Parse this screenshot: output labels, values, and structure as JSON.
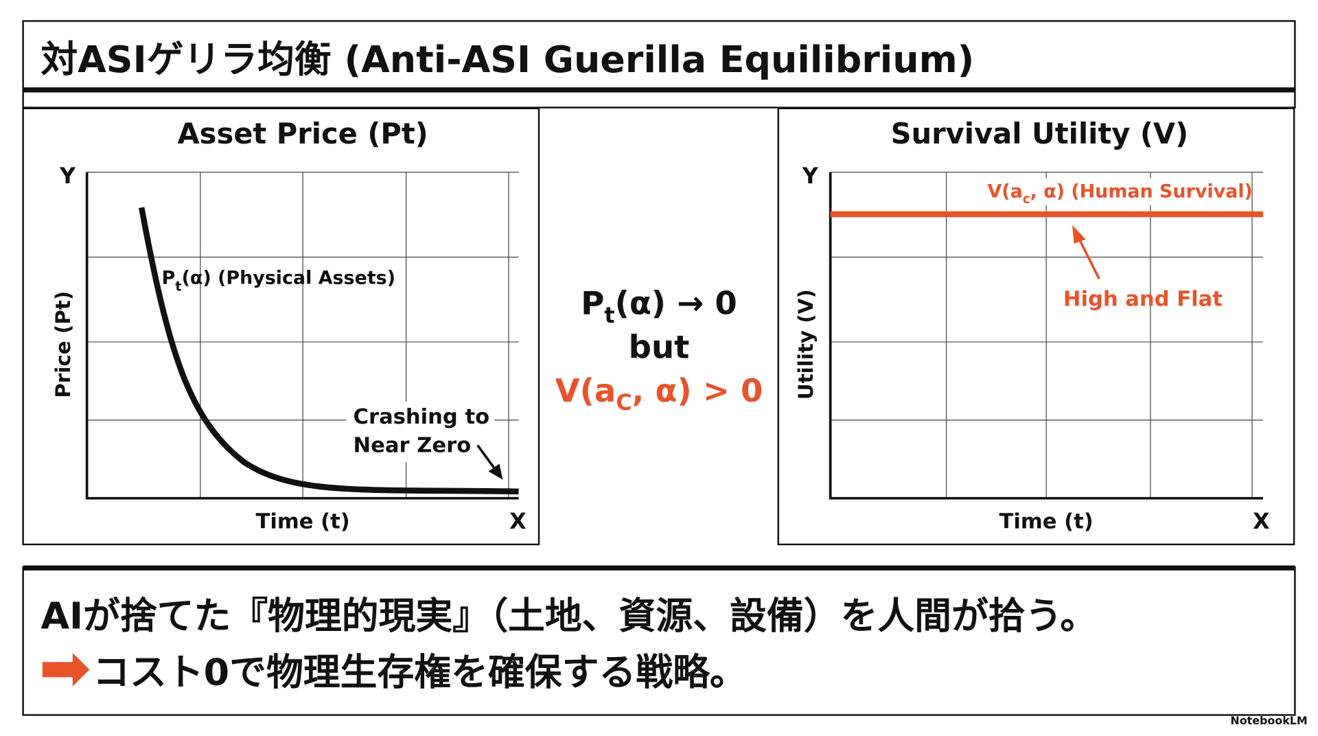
{
  "header": {
    "title": "対ASIゲリラ均衡 (Anti-ASI Guerilla Equilibrium)"
  },
  "left_panel": {
    "title": "Asset Price (Pt)",
    "y_axis": "Y",
    "y_label": "Price (Pt)",
    "x_label": "Time (t)",
    "x_axis": "X",
    "curve_label": [
      "P",
      "t",
      "(α) (Physical Assets)"
    ],
    "annotation": [
      "Crashing to",
      "Near Zero"
    ]
  },
  "center": {
    "line1": [
      "P",
      "t",
      "(α) → 0"
    ],
    "line2": "but",
    "line3": [
      "V(a",
      "C",
      ", α) > 0"
    ]
  },
  "right_panel": {
    "title": "Survival Utility (V)",
    "y_axis": "Y",
    "y_label": "Utility (V)",
    "x_label": "Time (t)",
    "x_axis": "X",
    "line_label": [
      "V(a",
      "c",
      ", α) (Human Survival)"
    ],
    "annotation": "High and Flat"
  },
  "footer": {
    "line1": "AIが捨てた『物理的現実』（土地、資源、設備）を人間が拾う。",
    "line2": "コスト0で物理生存権を確保する戦略。"
  },
  "branding": "NotebookLM"
}
